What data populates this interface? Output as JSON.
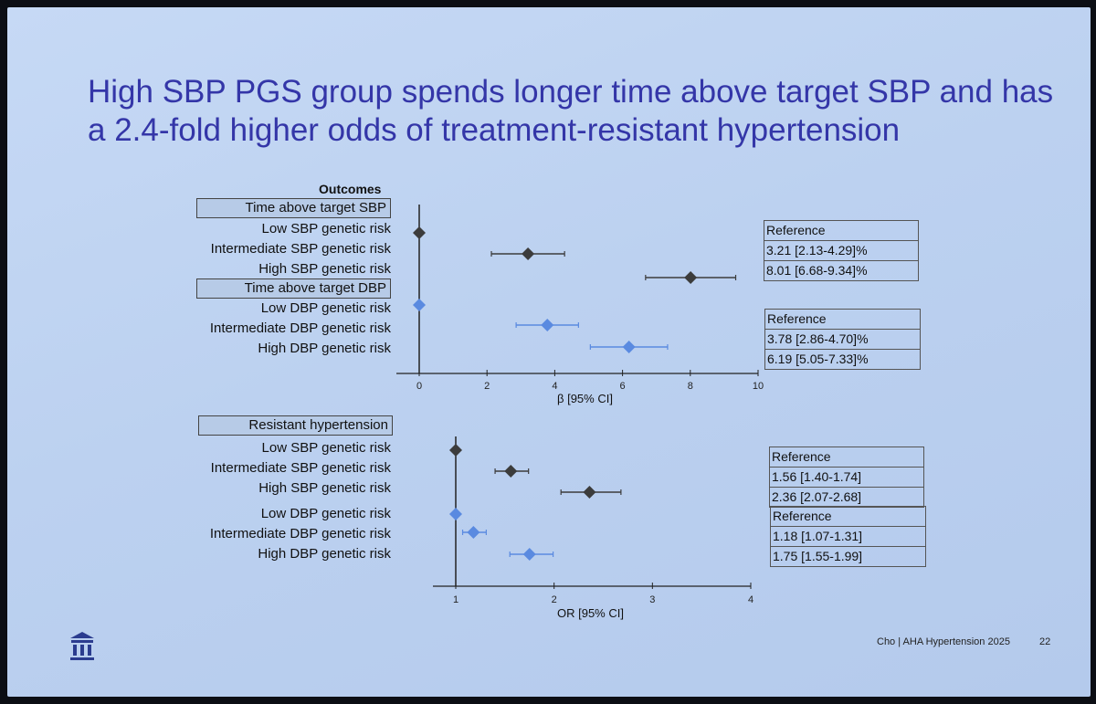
{
  "slide": {
    "title_line1": "High SBP PGS group spends longer time above target SBP and has",
    "title_line2": "a 2.4-fold higher odds of treatment-resistant hypertension",
    "outcomes_heading": "Outcomes",
    "footer_text": "Cho | AHA Hypertension 2025",
    "page_number": "22",
    "logo_icon": "institution-building-icon"
  },
  "colors": {
    "sbp": "#3c3c3c",
    "dbp": "#5a8ae0",
    "title": "#3436a8"
  },
  "chart_data": [
    {
      "type": "forest",
      "xlabel": "β [95% CI]",
      "xlim": [
        0,
        10
      ],
      "xticks": [
        "0",
        "2",
        "4",
        "6",
        "8",
        "10"
      ],
      "groups": [
        {
          "header": "Time above target SBP",
          "rows": [
            {
              "label": "Low SBP genetic risk",
              "est": 0,
              "lo": 0,
              "hi": 0,
              "series": "sbp",
              "text": "Reference"
            },
            {
              "label": "Intermediate SBP genetic risk",
              "est": 3.21,
              "lo": 2.13,
              "hi": 4.29,
              "series": "sbp",
              "text": "3.21 [2.13-4.29]%"
            },
            {
              "label": "High SBP genetic risk",
              "est": 8.01,
              "lo": 6.68,
              "hi": 9.34,
              "series": "sbp",
              "text": "8.01 [6.68-9.34]%"
            }
          ]
        },
        {
          "header": "Time above target DBP",
          "rows": [
            {
              "label": "Low DBP genetic risk",
              "est": 0,
              "lo": 0,
              "hi": 0,
              "series": "dbp",
              "text": "Reference"
            },
            {
              "label": "Intermediate DBP genetic risk",
              "est": 3.78,
              "lo": 2.86,
              "hi": 4.7,
              "series": "dbp",
              "text": "3.78 [2.86-4.70]%"
            },
            {
              "label": "High DBP genetic risk",
              "est": 6.19,
              "lo": 5.05,
              "hi": 7.33,
              "series": "dbp",
              "text": "6.19 [5.05-7.33]%"
            }
          ]
        }
      ]
    },
    {
      "type": "forest",
      "xlabel": "OR [95% CI]",
      "xlim": [
        1,
        4
      ],
      "xticks": [
        "1",
        "2",
        "3",
        "4"
      ],
      "groups": [
        {
          "header": "Resistant hypertension",
          "rows": [
            {
              "label": "Low SBP genetic risk",
              "est": 1,
              "lo": 1,
              "hi": 1,
              "series": "sbp",
              "text": "Reference"
            },
            {
              "label": "Intermediate SBP genetic risk",
              "est": 1.56,
              "lo": 1.4,
              "hi": 1.74,
              "series": "sbp",
              "text": "1.56 [1.40-1.74]"
            },
            {
              "label": "High SBP genetic risk",
              "est": 2.36,
              "lo": 2.07,
              "hi": 2.68,
              "series": "sbp",
              "text": "2.36 [2.07-2.68]"
            },
            {
              "label": "Low DBP genetic risk",
              "est": 1,
              "lo": 1,
              "hi": 1,
              "series": "dbp",
              "text": "Reference"
            },
            {
              "label": "Intermediate DBP genetic risk",
              "est": 1.18,
              "lo": 1.07,
              "hi": 1.31,
              "series": "dbp",
              "text": "1.18 [1.07-1.31]"
            },
            {
              "label": "High DBP genetic risk",
              "est": 1.75,
              "lo": 1.55,
              "hi": 1.99,
              "series": "dbp",
              "text": "1.75 [1.55-1.99]"
            }
          ]
        }
      ]
    }
  ]
}
